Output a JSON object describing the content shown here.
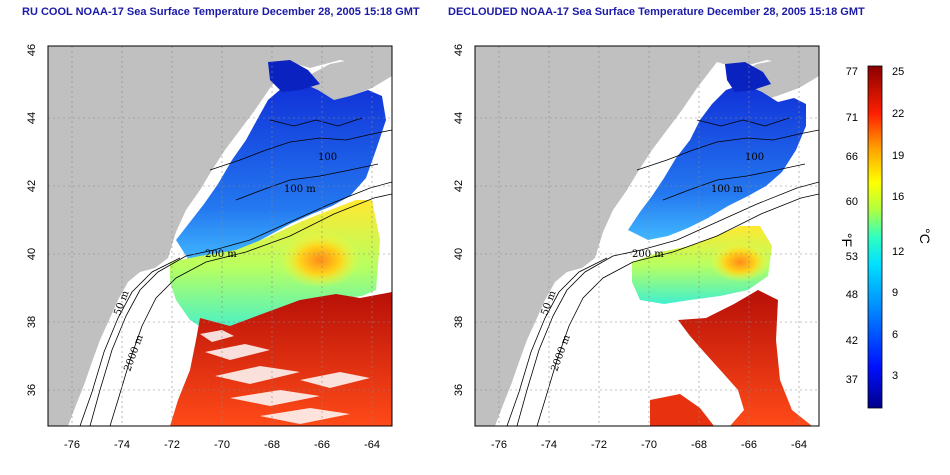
{
  "titles": {
    "left": "RU COOL NOAA-17 Sea Surface Temperature December 28, 2005 15:18 GMT",
    "right": "DECLOUDED NOAA-17 Sea Surface Temperature December 28, 2005 15:18 GMT"
  },
  "axes": {
    "lon_ticks": [
      "-76",
      "-74",
      "-72",
      "-70",
      "-68",
      "-66",
      "-64"
    ],
    "lat_ticks": [
      "46",
      "44",
      "42",
      "40",
      "38",
      "36"
    ]
  },
  "contour_labels": {
    "c200": "200 m",
    "c100a": "100 m",
    "c100b": "100",
    "c50": "50 m",
    "c2000": "2000 m"
  },
  "colorbar": {
    "unit_f": "°F",
    "unit_c": "°C",
    "ticks_f": [
      "77",
      "71",
      "66",
      "60",
      "53",
      "48",
      "42",
      "37"
    ],
    "ticks_c": [
      "25",
      "22",
      "19",
      "16",
      "12",
      "9",
      "6",
      "3"
    ]
  },
  "colors": {
    "land": "#c0c0c0",
    "cold": "#1e3cd8",
    "warm": "#e0280f",
    "panel_border": "#000000"
  }
}
